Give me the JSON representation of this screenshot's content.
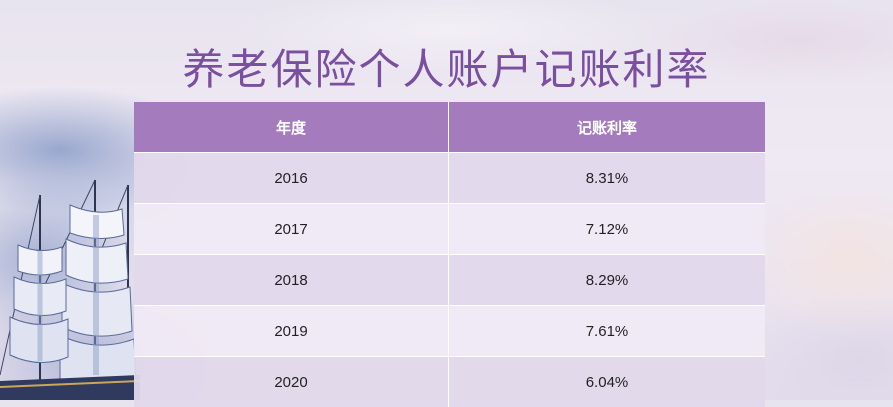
{
  "title": "养老保险个人账户记账利率",
  "table": {
    "headers": [
      "年度",
      "记账利率"
    ],
    "rows": [
      {
        "year": "2016",
        "rate": "8.31%"
      },
      {
        "year": "2017",
        "rate": "7.12%"
      },
      {
        "year": "2018",
        "rate": "8.29%"
      },
      {
        "year": "2019",
        "rate": "7.61%"
      },
      {
        "year": "2020",
        "rate": "6.04%"
      }
    ]
  },
  "colors": {
    "title": "#7b4fa0",
    "header_bg": "#a47bbd",
    "row_odd": "#e2d8eb",
    "row_even": "#f0eaf5"
  },
  "background": {
    "left_image_icon": "sailing-ship-icon"
  }
}
